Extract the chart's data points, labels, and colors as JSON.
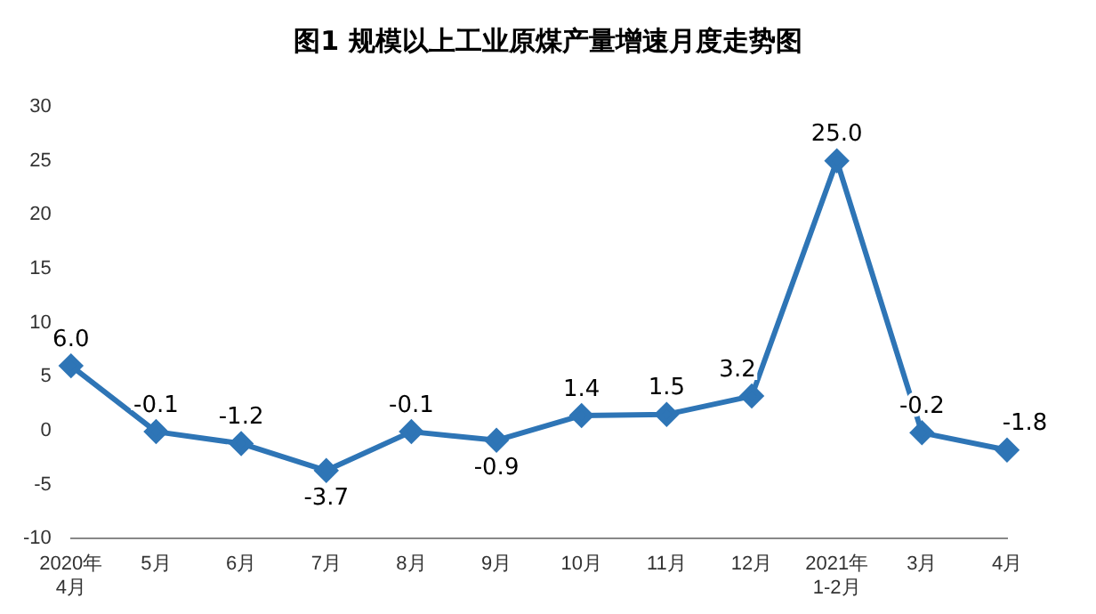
{
  "chart_data": {
    "type": "line",
    "title": "图1  规模以上工业原煤产量增速月度走势图",
    "categories": [
      "2020年\n4月",
      "5月",
      "6月",
      "7月",
      "8月",
      "9月",
      "10月",
      "11月",
      "12月",
      "2021年\n1-2月",
      "3月",
      "4月"
    ],
    "series": [
      {
        "color": "#2e75b6",
        "values": [
          6.0,
          -0.1,
          -1.2,
          -3.7,
          -0.1,
          -0.9,
          1.4,
          1.5,
          3.2,
          25.0,
          -0.2,
          -1.8
        ],
        "value_labels": [
          "6.0",
          "-0.1",
          "-1.2",
          "-3.7",
          "-0.1",
          "-0.9",
          "1.4",
          "1.5",
          "3.2",
          "25.0",
          "-0.2",
          "-1.8"
        ]
      }
    ],
    "ylim": [
      -10,
      30
    ],
    "yticks": [
      -10,
      -5,
      0,
      5,
      10,
      15,
      20,
      25,
      30
    ],
    "grid": false,
    "legend": false,
    "marker": "diamond",
    "line_style": "solid"
  }
}
